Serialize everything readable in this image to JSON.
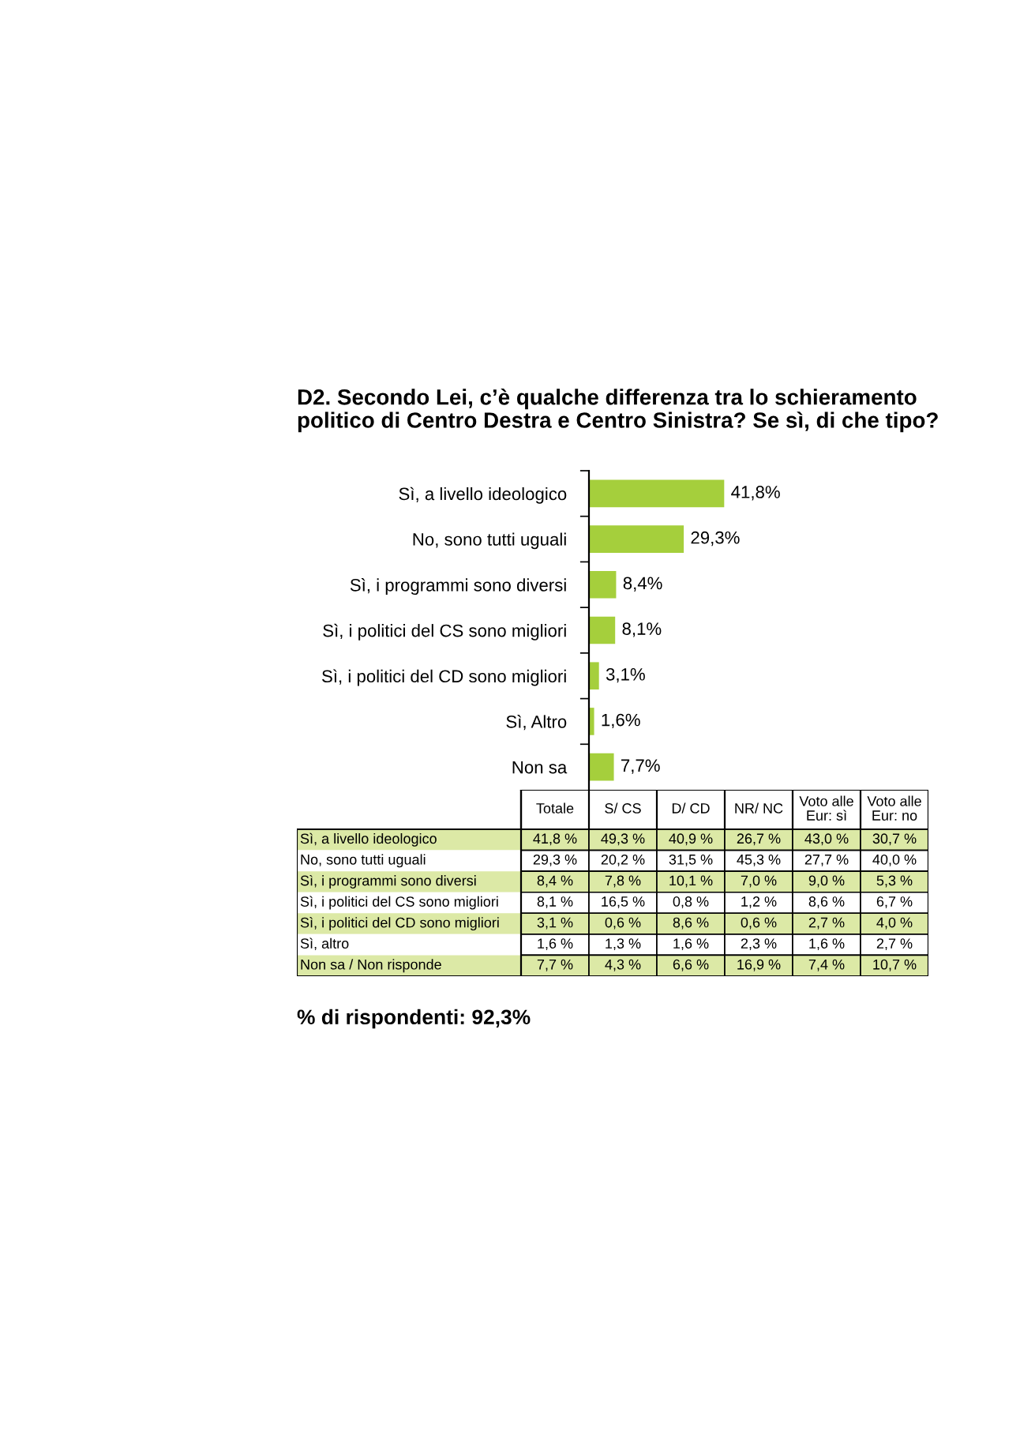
{
  "chart_data": [
    {
      "type": "bar",
      "orientation": "horizontal",
      "title": "D2. Secondo Lei, c’è qualche differenza tra lo schieramento\npolitico di Centro Destra e Centro Sinistra? Se sì, di che tipo?",
      "categories": [
        "Sì, a livello ideologico",
        "No, sono tutti uguali",
        "Sì, i programmi sono diversi",
        "Sì, i politici del CS sono migliori",
        "Sì, i politici del CD sono migliori",
        "Sì, Altro",
        "Non sa"
      ],
      "values": [
        41.8,
        29.3,
        8.4,
        8.1,
        3.1,
        1.6,
        7.7
      ],
      "value_labels": [
        "41,8%",
        "29,3%",
        "8,4%",
        "8,1%",
        "3,1%",
        "1,6%",
        "7,7%"
      ],
      "color": "#a5cf3c"
    },
    {
      "type": "heatmap",
      "categories": [
        "Totale",
        "S/ CS",
        "D/ CD",
        "NR/ NC",
        "Voto alle\nEur: sì",
        "Voto alle\nEur: no"
      ],
      "y_categories": [
        "Sì, a livello ideologico",
        "No, sono tutti uguali",
        "Sì, i programmi sono diversi",
        "Sì, i politici del CS sono migliori",
        "Sì, i politici del CD sono migliori",
        "Sì, altro",
        "Non sa / Non risponde"
      ],
      "cells": [
        [
          41.8,
          49.3,
          40.9,
          26.7,
          43.0,
          30.7
        ],
        [
          29.3,
          20.2,
          31.5,
          45.3,
          27.7,
          40.0
        ],
        [
          8.4,
          7.8,
          10.1,
          7.0,
          9.0,
          5.3
        ],
        [
          8.1,
          16.5,
          0.8,
          1.2,
          8.6,
          6.7
        ],
        [
          3.1,
          0.6,
          8.6,
          0.6,
          2.7,
          4.0
        ],
        [
          1.6,
          1.3,
          1.6,
          2.3,
          1.6,
          2.7
        ],
        [
          7.7,
          4.3,
          6.6,
          16.9,
          7.4,
          10.7
        ]
      ],
      "cell_labels": [
        [
          "41,8 %",
          "49,3 %",
          "40,9 %",
          "26,7 %",
          "43,0 %",
          "30,7 %"
        ],
        [
          "29,3 %",
          "20,2 %",
          "31,5 %",
          "45,3 %",
          "27,7 %",
          "40,0 %"
        ],
        [
          "8,4 %",
          "7,8 %",
          "10,1 %",
          "7,0 %",
          "9,0 %",
          "5,3 %"
        ],
        [
          "8,1 %",
          "16,5 %",
          "0,8 %",
          "1,2 %",
          "8,6 %",
          "6,7 %"
        ],
        [
          "3,1 %",
          "0,6 %",
          "8,6 %",
          "0,6 %",
          "2,7 %",
          "4,0 %"
        ],
        [
          "1,6 %",
          "1,3 %",
          "1,6 %",
          "2,3 %",
          "1,6 %",
          "2,7 %"
        ],
        [
          "7,7 %",
          "4,3 %",
          "6,6 %",
          "16,9 %",
          "7,4 %",
          "10,7 %"
        ]
      ],
      "annotations": [
        "% di rispondenti: 92,3%"
      ]
    }
  ]
}
